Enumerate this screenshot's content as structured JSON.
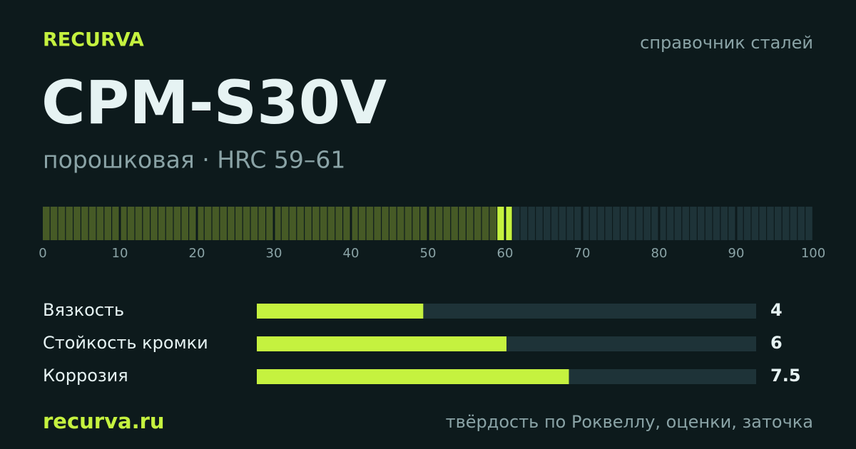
{
  "header": {
    "brand": "RECURVA",
    "tagline": "справочник сталей",
    "title": "CPM-S30V",
    "subtitle": "порошковая · HRC 59–61"
  },
  "hardness_scale": {
    "xlim": [
      0,
      100
    ],
    "xticks": [
      0,
      10,
      20,
      30,
      40,
      50,
      60,
      70,
      80,
      90,
      100
    ],
    "range": [
      59,
      61
    ],
    "fill_color": "#465a26",
    "range_color": "#c5f23f",
    "track_color": "#1e3338"
  },
  "ratings": {
    "xlim": [
      0,
      12
    ],
    "categories": [
      "Вязкость",
      "Стойкость кромки",
      "Коррозия"
    ],
    "values": [
      4,
      6,
      7.5
    ],
    "color": "#c5f23f",
    "track_color": "#1e3338"
  },
  "footer": {
    "site": "recurva.ru",
    "note": "твёрдость по Роквеллу, оценки, заточка"
  }
}
